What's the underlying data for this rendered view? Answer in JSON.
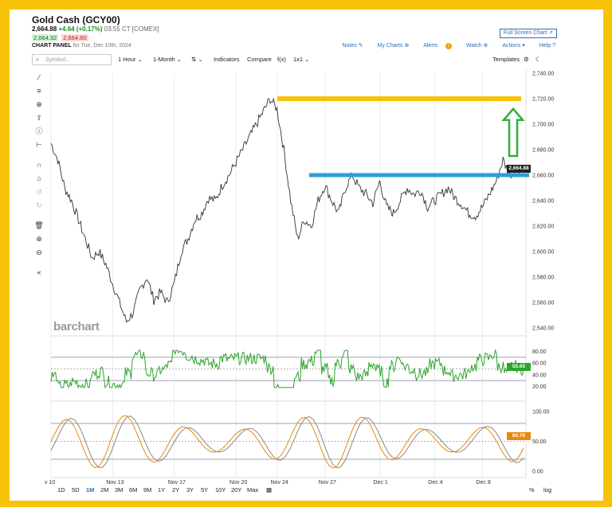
{
  "header": {
    "title": "Gold Cash (GCY00)",
    "last": "2,664.88",
    "change": "+4.64 (+0.17%)",
    "time": "03:55 CT [COMEX]",
    "bid": "2,664.32",
    "ask": "2,664.60",
    "panel_label": "CHART PANEL",
    "panel_date": "for Tue, Dec 10th, 2024",
    "fullscreen": "Full Screen Chart"
  },
  "links": {
    "notes": "Notes",
    "mycharts": "My Charts",
    "alerts": "Alerts",
    "watch": "Watch",
    "actions": "Actions",
    "help": "Help"
  },
  "toolbar": {
    "symbol_placeholder": "Symbol...",
    "interval": "1 Hour",
    "range": "1-Month",
    "indicators": "Indicators",
    "compare": "Compare",
    "fx": "f(x)",
    "layout": "1x1",
    "templates": "Templates"
  },
  "watermark": "barchart",
  "price_axis": [
    "2,740.00",
    "2,720.00",
    "2,700.00",
    "2,680.00",
    "2,660.00",
    "2,640.00",
    "2,620.00",
    "2,600.00",
    "2,580.00",
    "2,560.00",
    "2,540.00"
  ],
  "last_tag": "2,664.88",
  "rsi_axis": [
    "80.00",
    "60.00",
    "40.00",
    "20.00"
  ],
  "rsi_tag": "55.65",
  "stoch_axis": [
    "100.00",
    "50.00",
    "0.00"
  ],
  "stoch_tag": "60.76",
  "x_axis": [
    "v 10",
    "Nov 13",
    "Nov 17",
    "Nov 20",
    "Nov 24",
    "Nov 27",
    "Dec 1",
    "Dec 4",
    "Dec 8"
  ],
  "ranges": [
    "1D",
    "5D",
    "1M",
    "2M",
    "3M",
    "6M",
    "9M",
    "1Y",
    "2Y",
    "3Y",
    "5Y",
    "10Y",
    "20Y",
    "Max"
  ],
  "active_range": "1M",
  "bottom_right": {
    "pct": "%",
    "log": "log"
  },
  "colors": {
    "annotation_yellow": "#f7c30a",
    "annotation_blue": "#2a9fd8",
    "annotation_green": "#2fae3a",
    "rsi_line": "#2aa52a",
    "stoch_fast": "#e8890c",
    "stoch_slow": "#888888",
    "tag_dark": "#222222",
    "tag_green": "#2aa52a",
    "tag_orange": "#e8890c"
  },
  "chart_data": {
    "type": "line",
    "title": "",
    "ylim": [
      2540,
      2740
    ],
    "price_series": [
      [
        "v 10",
        2685
      ],
      [
        "",
        2672
      ],
      [
        "",
        2650
      ],
      [
        "",
        2640
      ],
      [
        "",
        2625
      ],
      [
        "",
        2610
      ],
      [
        "",
        2595
      ],
      [
        "",
        2600
      ],
      [
        "",
        2590
      ],
      [
        "Nov 13",
        2575
      ],
      [
        "",
        2560
      ],
      [
        "",
        2545
      ],
      [
        "",
        2552
      ],
      [
        "",
        2570
      ],
      [
        "",
        2580
      ],
      [
        "",
        2562
      ],
      [
        "",
        2568
      ],
      [
        "",
        2560
      ],
      [
        "Nov 17",
        2575
      ],
      [
        "",
        2600
      ],
      [
        "",
        2610
      ],
      [
        "",
        2625
      ],
      [
        "",
        2630
      ],
      [
        "",
        2642
      ],
      [
        "",
        2640
      ],
      [
        "",
        2652
      ],
      [
        "",
        2660
      ],
      [
        "Nov 20",
        2670
      ],
      [
        "",
        2680
      ],
      [
        "",
        2690
      ],
      [
        "",
        2700
      ],
      [
        "",
        2710
      ],
      [
        "",
        2720
      ],
      [
        "Nov 24",
        2712
      ],
      [
        "",
        2680
      ],
      [
        "",
        2640
      ],
      [
        "",
        2610
      ],
      [
        "",
        2625
      ],
      [
        "",
        2620
      ],
      [
        "",
        2640
      ],
      [
        "Nov 27",
        2652
      ],
      [
        "",
        2640
      ],
      [
        "",
        2630
      ],
      [
        "",
        2650
      ],
      [
        "",
        2660
      ],
      [
        "",
        2650
      ],
      [
        "",
        2645
      ],
      [
        "",
        2638
      ],
      [
        "Dec 1",
        2655
      ],
      [
        "",
        2635
      ],
      [
        "",
        2630
      ],
      [
        "",
        2640
      ],
      [
        "",
        2650
      ],
      [
        "",
        2645
      ],
      [
        "",
        2648
      ],
      [
        "",
        2635
      ],
      [
        "Dec 4",
        2640
      ],
      [
        "",
        2645
      ],
      [
        "",
        2650
      ],
      [
        "",
        2642
      ],
      [
        "",
        2637
      ],
      [
        "",
        2630
      ],
      [
        "",
        2628
      ],
      [
        "Dec 8",
        2635
      ],
      [
        "",
        2645
      ],
      [
        "",
        2655
      ],
      [
        "",
        2672
      ],
      [
        "",
        2660
      ],
      [
        "",
        2665
      ],
      [
        "",
        2664.88
      ]
    ],
    "annotations": [
      {
        "type": "horizontal",
        "color": "yellow",
        "y": 2720
      },
      {
        "type": "horizontal",
        "color": "blue",
        "y": 2660
      },
      {
        "type": "arrow-up",
        "color": "green",
        "from": 2675,
        "to": 2712
      }
    ]
  }
}
